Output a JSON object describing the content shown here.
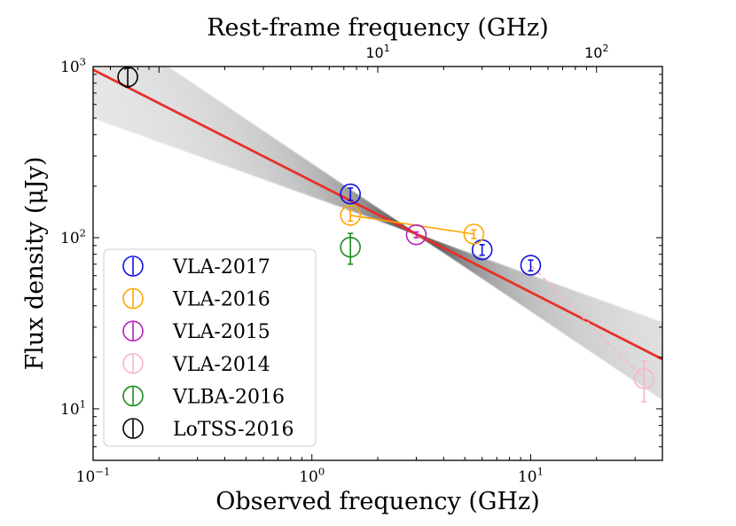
{
  "chart_data": {
    "type": "scatter",
    "title": "",
    "xlabel": "Observed frequency (GHz)",
    "ylabel": "Flux density (μJy)",
    "top_xlabel": "Rest-frame frequency (GHz)",
    "xscale": "log",
    "yscale": "log",
    "xlim": [
      0.1,
      40
    ],
    "ylim": [
      5,
      1000
    ],
    "x_ticks": [
      {
        "value": 0.1,
        "base": "10",
        "exp": "−1"
      },
      {
        "value": 1,
        "base": "10",
        "exp": "0"
      },
      {
        "value": 10,
        "base": "10",
        "exp": "1"
      }
    ],
    "y_ticks": [
      {
        "value": 10,
        "base": "10",
        "exp": "1"
      },
      {
        "value": 100,
        "base": "10",
        "exp": "2"
      },
      {
        "value": 1000,
        "base": "10",
        "exp": "3"
      }
    ],
    "top_ticks": [
      {
        "value": 10,
        "base": "10",
        "exp": "1"
      },
      {
        "value": 100,
        "base": "10",
        "exp": "2"
      }
    ],
    "top_axis_obs_per_rest": 0.2,
    "fit": {
      "name": "best-fit power law",
      "color": "#e8302a",
      "pivot_x": 3.0,
      "pivot_y": 105,
      "slope": -0.65
    },
    "posterior_samples": {
      "count": 80,
      "color": "#555555",
      "slope_range": [
        -0.86,
        -0.46
      ]
    },
    "legend_position": "lower-left",
    "series": [
      {
        "name": "VLA-2017",
        "color": "#1010e0",
        "connect": false,
        "points": [
          {
            "x": 1.5,
            "y": 180,
            "err": 15
          },
          {
            "x": 6.0,
            "y": 85,
            "err": 6
          },
          {
            "x": 10.0,
            "y": 69,
            "err": 5
          }
        ]
      },
      {
        "name": "VLA-2016",
        "color": "#ffa500",
        "connect": true,
        "points": [
          {
            "x": 1.5,
            "y": 135,
            "err": 10
          },
          {
            "x": 5.5,
            "y": 105,
            "err": 6
          }
        ]
      },
      {
        "name": "VLA-2015",
        "color": "#b61fb6",
        "connect": false,
        "points": [
          {
            "x": 3.0,
            "y": 104,
            "err": 4
          }
        ]
      },
      {
        "name": "VLA-2014",
        "color": "#f5b7c6",
        "connect": false,
        "points": [
          {
            "x": 33.0,
            "y": 15,
            "err": 4
          }
        ]
      },
      {
        "name": "VLBA-2016",
        "color": "#1e8a1e",
        "connect": false,
        "points": [
          {
            "x": 1.5,
            "y": 88,
            "err": 18
          }
        ]
      },
      {
        "name": "LoTSS-2016",
        "color": "#000000",
        "connect": false,
        "points": [
          {
            "x": 0.144,
            "y": 870,
            "err": 110
          }
        ]
      }
    ],
    "dashed_link": {
      "color": "#f5b7c6",
      "from": {
        "x": 10.0,
        "y": 69
      },
      "to": {
        "x": 33.0,
        "y": 15
      }
    }
  }
}
